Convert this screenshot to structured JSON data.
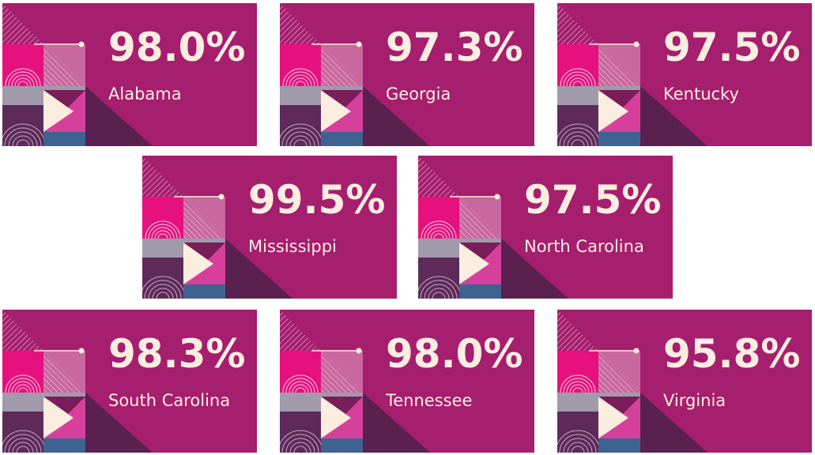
{
  "cards": [
    {
      "value": "98.0%",
      "label": "Alabama"
    },
    {
      "value": "97.3%",
      "label": "Georgia"
    },
    {
      "value": "97.5%",
      "label": "Kentucky"
    },
    {
      "value": "99.5%",
      "label": "Mississippi"
    },
    {
      "value": "97.5%",
      "label": "North Carolina"
    },
    {
      "value": "98.3%",
      "label": "South Carolina"
    },
    {
      "value": "98.0%",
      "label": "Tennessee"
    },
    {
      "value": "95.8%",
      "label": "Virginia"
    }
  ]
}
